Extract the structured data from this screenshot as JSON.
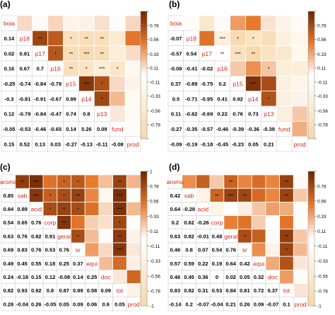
{
  "colors": {
    "high": "#6b2503",
    "mid_high": "#e8792c",
    "neutral": "#ffffff",
    "low": "#f7d7a8",
    "label_text": "#d9241b",
    "value_text": "#000000",
    "grid": "#bbbbbb"
  },
  "colorbar_ticks": [
    {
      "label": "1",
      "value": 1.0
    },
    {
      "label": "0.78",
      "value": 0.78
    },
    {
      "label": "0.56",
      "value": 0.56
    },
    {
      "label": "0.33",
      "value": 0.33
    },
    {
      "label": "0.11",
      "value": 0.11
    },
    {
      "label": "-0.11",
      "value": -0.11
    },
    {
      "label": "-0.33",
      "value": -0.33
    },
    {
      "label": "-0.56",
      "value": -0.56
    },
    {
      "label": "-0.78",
      "value": -0.78
    },
    {
      "label": "-1",
      "value": -1.0
    }
  ],
  "chart_data": [
    {
      "type": "heatmap",
      "panel_label": "(a)",
      "variables": [
        "boia",
        "p18",
        "p17",
        "p16",
        "p15",
        "p14",
        "p13",
        "fund",
        "prod"
      ],
      "colorbar_tick_labels": [
        "",
        "0.78",
        "0.56",
        "0.33",
        "0.11",
        "-0.11",
        "-0.33",
        "-0.56",
        "-0.78",
        ""
      ],
      "lower": [
        [],
        [
          0.14
        ],
        [
          0.02,
          0.81
        ],
        [
          0.16,
          0.67,
          0.7
        ],
        [
          -0.25,
          -0.74,
          -0.84,
          -0.78
        ],
        [
          -0.3,
          -0.81,
          -0.91,
          -0.67,
          0.89
        ],
        [
          0.12,
          -0.79,
          -0.84,
          -0.47,
          0.74,
          0.8
        ],
        [
          -0.05,
          -0.53,
          -0.46,
          -0.65,
          0.14,
          0.26,
          0.09
        ],
        [
          0.15,
          0.52,
          0.13,
          0.03,
          -0.27,
          -0.13,
          -0.11,
          -0.08
        ]
      ],
      "upper": [
        [
          null,
          0.14,
          0.02,
          0.16,
          -0.25,
          -0.3,
          0.12,
          -0.05,
          0.15
        ],
        [
          null,
          null,
          0.81,
          0.67,
          -0.74,
          -0.81,
          -0.79,
          -0.53,
          0.52
        ],
        [
          null,
          null,
          null,
          0.7,
          -0.84,
          -0.91,
          -0.84,
          -0.46,
          0.13
        ],
        [
          null,
          null,
          null,
          null,
          -0.78,
          -0.67,
          -0.47,
          -0.65,
          0.03
        ],
        [
          null,
          null,
          null,
          null,
          null,
          0.89,
          0.74,
          0.14,
          -0.27
        ],
        [
          null,
          null,
          null,
          null,
          null,
          null,
          0.8,
          0.26,
          -0.13
        ],
        [
          null,
          null,
          null,
          null,
          null,
          null,
          null,
          0.09,
          -0.11
        ],
        [
          null,
          null,
          null,
          null,
          null,
          null,
          null,
          null,
          -0.08
        ]
      ],
      "stars": [
        [
          null,
          null,
          null,
          null,
          null,
          null,
          null,
          null,
          null
        ],
        [
          null,
          null,
          "**",
          "",
          "*",
          "**",
          "**",
          "",
          ""
        ],
        [
          null,
          null,
          null,
          "*",
          "**",
          "***",
          "**",
          "",
          ""
        ],
        [
          null,
          null,
          null,
          null,
          "**",
          "*",
          "***",
          "*",
          ""
        ],
        [
          null,
          null,
          null,
          null,
          null,
          "***",
          "*",
          "",
          ""
        ],
        [
          null,
          null,
          null,
          null,
          null,
          null,
          "*",
          "",
          ""
        ],
        [
          null,
          null,
          null,
          null,
          null,
          null,
          null,
          "",
          ""
        ],
        [
          null,
          null,
          null,
          null,
          null,
          null,
          null,
          null,
          ""
        ]
      ]
    },
    {
      "type": "heatmap",
      "panel_label": "(b)",
      "variables": [
        "boia",
        "p18",
        "p17",
        "p16",
        "p15",
        "p14",
        "p13",
        "fund",
        "prod"
      ],
      "colorbar_tick_labels": [
        "",
        "0.78",
        "0.56",
        "0.33",
        "0.11",
        "-0.11",
        "-0.33",
        "-0.56",
        "-0.78",
        ""
      ],
      "lower": [
        [],
        [
          -0.07
        ],
        [
          -0.57,
          0.54
        ],
        [
          -0.09,
          -0.41,
          -0.02
        ],
        [
          0.37,
          -0.89,
          -0.75,
          0.2
        ],
        [
          0.5,
          -0.71,
          -0.95,
          0.41,
          0.92
        ],
        [
          0.11,
          -0.82,
          -0.69,
          0.22,
          0.76,
          0.73
        ],
        [
          -0.27,
          -0.35,
          -0.57,
          -0.46,
          -0.39,
          -0.36,
          -0.39
        ],
        [
          -0.09,
          -0.19,
          -0.18,
          -0.45,
          -0.23,
          0.05,
          0.21
        ]
      ],
      "upper": [
        [
          null,
          -0.07,
          -0.57,
          -0.09,
          0.37,
          0.5,
          0.11,
          -0.27,
          -0.09
        ],
        [
          null,
          null,
          0.54,
          -0.41,
          -0.89,
          -0.71,
          -0.82,
          -0.35,
          -0.19
        ],
        [
          null,
          null,
          null,
          -0.02,
          -0.75,
          -0.95,
          -0.69,
          -0.57,
          -0.18
        ],
        [
          null,
          null,
          null,
          null,
          0.2,
          0.41,
          0.22,
          -0.46,
          -0.45
        ],
        [
          null,
          null,
          null,
          null,
          null,
          0.92,
          0.76,
          -0.39,
          -0.23
        ],
        [
          null,
          null,
          null,
          null,
          null,
          null,
          0.73,
          -0.36,
          0.05
        ],
        [
          null,
          null,
          null,
          null,
          null,
          null,
          null,
          -0.39,
          0.21
        ],
        [
          null,
          null,
          null,
          null,
          null,
          null,
          null,
          null,
          0.3
        ]
      ],
      "stars": [
        [
          null,
          null,
          null,
          null,
          null,
          null,
          null,
          null,
          null
        ],
        [
          null,
          null,
          "",
          "***",
          "*",
          "*",
          "",
          "",
          ""
        ],
        [
          null,
          null,
          null,
          "**",
          "***",
          "**",
          "",
          "",
          ""
        ],
        [
          null,
          null,
          null,
          null,
          "",
          "",
          "*",
          "",
          ""
        ],
        [
          null,
          null,
          null,
          null,
          null,
          "***",
          "",
          "",
          ""
        ],
        [
          null,
          null,
          null,
          null,
          null,
          null,
          "*",
          "",
          ""
        ],
        [
          null,
          null,
          null,
          null,
          null,
          null,
          null,
          "",
          ""
        ],
        [
          null,
          null,
          null,
          null,
          null,
          null,
          null,
          null,
          ""
        ]
      ]
    },
    {
      "type": "heatmap",
      "panel_label": "(c)",
      "variables": [
        "aroma",
        "sab",
        "acid",
        "corp",
        "geral",
        "sr",
        "equi",
        "doc",
        "tot",
        "prod"
      ],
      "colorbar_tick_labels": [
        "1",
        "0.78",
        "0.56",
        "0.33",
        "0.11",
        "-0.11",
        "-0.33",
        "-0.56",
        "-0.78",
        "-1"
      ],
      "lower": [
        [],
        [
          0.85
        ],
        [
          0.94,
          0.89
        ],
        [
          0.54,
          0.65,
          0.76
        ],
        [
          0.63,
          0.76,
          0.82,
          0.91
        ],
        [
          0.69,
          0.83,
          0.76,
          0.53,
          0.76
        ],
        [
          0.49,
          0.45,
          0.55,
          0.18,
          0.25,
          0.37
        ],
        [
          0.24,
          -0.18,
          0.15,
          0.12,
          -0.08,
          0.14,
          0.25
        ],
        [
          0.82,
          0.93,
          0.92,
          0.8,
          0.87,
          0.89,
          0.58,
          0.09
        ],
        [
          0.28,
          -0.04,
          0.26,
          -0.05,
          0.05,
          0.09,
          0.06,
          0.6,
          0.05
        ]
      ],
      "upper": [
        [
          null,
          0.85,
          0.94,
          0.54,
          0.63,
          0.69,
          0.49,
          0.24,
          0.82,
          0.28
        ],
        [
          null,
          null,
          0.89,
          0.65,
          0.76,
          0.83,
          0.45,
          -0.18,
          0.93,
          -0.04
        ],
        [
          null,
          null,
          null,
          0.76,
          0.82,
          0.76,
          0.55,
          0.15,
          0.92,
          0.26
        ],
        [
          null,
          null,
          null,
          null,
          0.91,
          0.53,
          0.18,
          0.12,
          0.8,
          -0.05
        ],
        [
          null,
          null,
          null,
          null,
          null,
          0.76,
          0.25,
          -0.08,
          0.87,
          0.05
        ],
        [
          null,
          null,
          null,
          null,
          null,
          null,
          0.37,
          0.14,
          0.89,
          0.09
        ],
        [
          null,
          null,
          null,
          null,
          null,
          null,
          null,
          0.25,
          0.58,
          0.06
        ],
        [
          null,
          null,
          null,
          null,
          null,
          null,
          null,
          null,
          0.09,
          0.6
        ],
        [
          null,
          null,
          null,
          null,
          null,
          null,
          null,
          null,
          null,
          0.05
        ]
      ],
      "stars": [
        [
          null,
          "**",
          "***",
          "",
          "*",
          "*",
          "",
          "",
          "**",
          ""
        ],
        [
          null,
          null,
          "***",
          "*",
          "*",
          "**",
          "",
          "",
          "***",
          ""
        ],
        [
          null,
          null,
          null,
          "*",
          "*",
          "*",
          "",
          "",
          "***",
          ""
        ],
        [
          null,
          null,
          null,
          null,
          "**",
          "",
          "",
          "",
          "*",
          ""
        ],
        [
          null,
          null,
          null,
          null,
          null,
          "*",
          "",
          "",
          "**",
          ""
        ],
        [
          null,
          null,
          null,
          null,
          null,
          null,
          "",
          "",
          "***",
          ""
        ],
        [
          null,
          null,
          null,
          null,
          null,
          null,
          null,
          "",
          "",
          ""
        ],
        [
          null,
          null,
          null,
          null,
          null,
          null,
          null,
          null,
          "",
          ""
        ],
        [
          null,
          null,
          null,
          null,
          null,
          null,
          null,
          null,
          null,
          ""
        ]
      ]
    },
    {
      "type": "heatmap",
      "panel_label": "(d)",
      "variables": [
        "aroma",
        "sab",
        "acid",
        "corp",
        "geral",
        "sr",
        "equi",
        "doc",
        "tot",
        "prod"
      ],
      "colorbar_tick_labels": [
        "",
        "0.78",
        "0.56",
        "0.33",
        "0.11",
        "-0.11",
        "-0.33",
        "-0.56",
        "-0.78",
        "-1"
      ],
      "lower": [
        [],
        [
          0.42
        ],
        [
          0.64,
          -0.28
        ],
        [
          0.2,
          0.62,
          -0.26
        ],
        [
          0.63,
          0.82,
          -0.01,
          0.48
        ],
        [
          0.46,
          0.8,
          0.07,
          0.54,
          0.76
        ],
        [
          0.57,
          0.59,
          0.22,
          0.19,
          0.64,
          0.42
        ],
        [
          0.46,
          0.45,
          0.36,
          0.0,
          0.02,
          0.05,
          0.32
        ],
        [
          0.83,
          0.82,
          0.31,
          0.53,
          0.84,
          0.81,
          0.72,
          0.37
        ],
        [
          -0.14,
          0.2,
          -0.07,
          -0.04,
          0.21,
          0.26,
          0.09,
          -0.07,
          0.1
        ]
      ],
      "upper": [
        [
          null,
          0.42,
          0.64,
          0.2,
          0.63,
          0.46,
          0.57,
          0.46,
          0.83,
          -0.14
        ],
        [
          null,
          null,
          -0.28,
          0.62,
          0.82,
          0.8,
          0.59,
          0.45,
          0.82,
          0.2
        ],
        [
          null,
          null,
          null,
          -0.26,
          -0.01,
          0.07,
          0.22,
          0.36,
          0.31,
          -0.07
        ],
        [
          null,
          null,
          null,
          null,
          0.48,
          0.54,
          0.19,
          0.0,
          0.53,
          -0.04
        ],
        [
          null,
          null,
          null,
          null,
          null,
          0.76,
          0.64,
          0.02,
          0.84,
          0.21
        ],
        [
          null,
          null,
          null,
          null,
          null,
          null,
          0.42,
          0.05,
          0.81,
          0.26
        ],
        [
          null,
          null,
          null,
          null,
          null,
          null,
          null,
          0.32,
          0.72,
          0.09
        ],
        [
          null,
          null,
          null,
          null,
          null,
          null,
          null,
          null,
          0.37,
          -0.07
        ],
        [
          null,
          null,
          null,
          null,
          null,
          null,
          null,
          null,
          null,
          0.1
        ]
      ],
      "stars": [
        [
          null,
          "",
          "",
          "",
          "**",
          "",
          "",
          "",
          "**",
          ""
        ],
        [
          null,
          null,
          "",
          "**",
          "***",
          "**",
          "",
          "",
          "**",
          ""
        ],
        [
          null,
          null,
          null,
          "",
          "",
          "",
          "",
          "",
          "",
          ""
        ],
        [
          null,
          null,
          null,
          null,
          "",
          "",
          "",
          "",
          "",
          ""
        ],
        [
          null,
          null,
          null,
          null,
          null,
          "*",
          "",
          "",
          "**",
          ""
        ],
        [
          null,
          null,
          null,
          null,
          null,
          null,
          "",
          "",
          "*",
          ""
        ],
        [
          null,
          null,
          null,
          null,
          null,
          null,
          null,
          "",
          "",
          ""
        ],
        [
          null,
          null,
          null,
          null,
          null,
          null,
          null,
          null,
          "",
          ""
        ],
        [
          null,
          null,
          null,
          null,
          null,
          null,
          null,
          null,
          null,
          ""
        ]
      ]
    }
  ]
}
